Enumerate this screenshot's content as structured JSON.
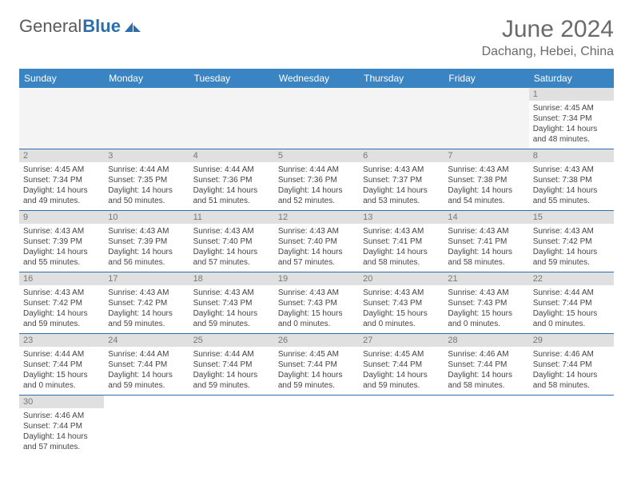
{
  "brand": {
    "general": "General",
    "blue": "Blue"
  },
  "title": "June 2024",
  "location": "Dachang, Hebei, China",
  "dayNames": [
    "Sunday",
    "Monday",
    "Tuesday",
    "Wednesday",
    "Thursday",
    "Friday",
    "Saturday"
  ],
  "colors": {
    "header_bg": "#3b84c4",
    "header_text": "#ffffff",
    "daynum_bg": "#e0e0e0",
    "daynum_text": "#777777",
    "body_text": "#444444",
    "rule": "#2b6fad",
    "title_text": "#6a6a6a",
    "blank_bg": "#f4f4f4"
  },
  "weeks": [
    [
      null,
      null,
      null,
      null,
      null,
      null,
      {
        "n": "1",
        "sunrise": "Sunrise: 4:45 AM",
        "sunset": "Sunset: 7:34 PM",
        "daylight": "Daylight: 14 hours and 48 minutes."
      }
    ],
    [
      {
        "n": "2",
        "sunrise": "Sunrise: 4:45 AM",
        "sunset": "Sunset: 7:34 PM",
        "daylight": "Daylight: 14 hours and 49 minutes."
      },
      {
        "n": "3",
        "sunrise": "Sunrise: 4:44 AM",
        "sunset": "Sunset: 7:35 PM",
        "daylight": "Daylight: 14 hours and 50 minutes."
      },
      {
        "n": "4",
        "sunrise": "Sunrise: 4:44 AM",
        "sunset": "Sunset: 7:36 PM",
        "daylight": "Daylight: 14 hours and 51 minutes."
      },
      {
        "n": "5",
        "sunrise": "Sunrise: 4:44 AM",
        "sunset": "Sunset: 7:36 PM",
        "daylight": "Daylight: 14 hours and 52 minutes."
      },
      {
        "n": "6",
        "sunrise": "Sunrise: 4:43 AM",
        "sunset": "Sunset: 7:37 PM",
        "daylight": "Daylight: 14 hours and 53 minutes."
      },
      {
        "n": "7",
        "sunrise": "Sunrise: 4:43 AM",
        "sunset": "Sunset: 7:38 PM",
        "daylight": "Daylight: 14 hours and 54 minutes."
      },
      {
        "n": "8",
        "sunrise": "Sunrise: 4:43 AM",
        "sunset": "Sunset: 7:38 PM",
        "daylight": "Daylight: 14 hours and 55 minutes."
      }
    ],
    [
      {
        "n": "9",
        "sunrise": "Sunrise: 4:43 AM",
        "sunset": "Sunset: 7:39 PM",
        "daylight": "Daylight: 14 hours and 55 minutes."
      },
      {
        "n": "10",
        "sunrise": "Sunrise: 4:43 AM",
        "sunset": "Sunset: 7:39 PM",
        "daylight": "Daylight: 14 hours and 56 minutes."
      },
      {
        "n": "11",
        "sunrise": "Sunrise: 4:43 AM",
        "sunset": "Sunset: 7:40 PM",
        "daylight": "Daylight: 14 hours and 57 minutes."
      },
      {
        "n": "12",
        "sunrise": "Sunrise: 4:43 AM",
        "sunset": "Sunset: 7:40 PM",
        "daylight": "Daylight: 14 hours and 57 minutes."
      },
      {
        "n": "13",
        "sunrise": "Sunrise: 4:43 AM",
        "sunset": "Sunset: 7:41 PM",
        "daylight": "Daylight: 14 hours and 58 minutes."
      },
      {
        "n": "14",
        "sunrise": "Sunrise: 4:43 AM",
        "sunset": "Sunset: 7:41 PM",
        "daylight": "Daylight: 14 hours and 58 minutes."
      },
      {
        "n": "15",
        "sunrise": "Sunrise: 4:43 AM",
        "sunset": "Sunset: 7:42 PM",
        "daylight": "Daylight: 14 hours and 59 minutes."
      }
    ],
    [
      {
        "n": "16",
        "sunrise": "Sunrise: 4:43 AM",
        "sunset": "Sunset: 7:42 PM",
        "daylight": "Daylight: 14 hours and 59 minutes."
      },
      {
        "n": "17",
        "sunrise": "Sunrise: 4:43 AM",
        "sunset": "Sunset: 7:42 PM",
        "daylight": "Daylight: 14 hours and 59 minutes."
      },
      {
        "n": "18",
        "sunrise": "Sunrise: 4:43 AM",
        "sunset": "Sunset: 7:43 PM",
        "daylight": "Daylight: 14 hours and 59 minutes."
      },
      {
        "n": "19",
        "sunrise": "Sunrise: 4:43 AM",
        "sunset": "Sunset: 7:43 PM",
        "daylight": "Daylight: 15 hours and 0 minutes."
      },
      {
        "n": "20",
        "sunrise": "Sunrise: 4:43 AM",
        "sunset": "Sunset: 7:43 PM",
        "daylight": "Daylight: 15 hours and 0 minutes."
      },
      {
        "n": "21",
        "sunrise": "Sunrise: 4:43 AM",
        "sunset": "Sunset: 7:43 PM",
        "daylight": "Daylight: 15 hours and 0 minutes."
      },
      {
        "n": "22",
        "sunrise": "Sunrise: 4:44 AM",
        "sunset": "Sunset: 7:44 PM",
        "daylight": "Daylight: 15 hours and 0 minutes."
      }
    ],
    [
      {
        "n": "23",
        "sunrise": "Sunrise: 4:44 AM",
        "sunset": "Sunset: 7:44 PM",
        "daylight": "Daylight: 15 hours and 0 minutes."
      },
      {
        "n": "24",
        "sunrise": "Sunrise: 4:44 AM",
        "sunset": "Sunset: 7:44 PM",
        "daylight": "Daylight: 14 hours and 59 minutes."
      },
      {
        "n": "25",
        "sunrise": "Sunrise: 4:44 AM",
        "sunset": "Sunset: 7:44 PM",
        "daylight": "Daylight: 14 hours and 59 minutes."
      },
      {
        "n": "26",
        "sunrise": "Sunrise: 4:45 AM",
        "sunset": "Sunset: 7:44 PM",
        "daylight": "Daylight: 14 hours and 59 minutes."
      },
      {
        "n": "27",
        "sunrise": "Sunrise: 4:45 AM",
        "sunset": "Sunset: 7:44 PM",
        "daylight": "Daylight: 14 hours and 59 minutes."
      },
      {
        "n": "28",
        "sunrise": "Sunrise: 4:46 AM",
        "sunset": "Sunset: 7:44 PM",
        "daylight": "Daylight: 14 hours and 58 minutes."
      },
      {
        "n": "29",
        "sunrise": "Sunrise: 4:46 AM",
        "sunset": "Sunset: 7:44 PM",
        "daylight": "Daylight: 14 hours and 58 minutes."
      }
    ],
    [
      {
        "n": "30",
        "sunrise": "Sunrise: 4:46 AM",
        "sunset": "Sunset: 7:44 PM",
        "daylight": "Daylight: 14 hours and 57 minutes."
      },
      null,
      null,
      null,
      null,
      null,
      null
    ]
  ]
}
